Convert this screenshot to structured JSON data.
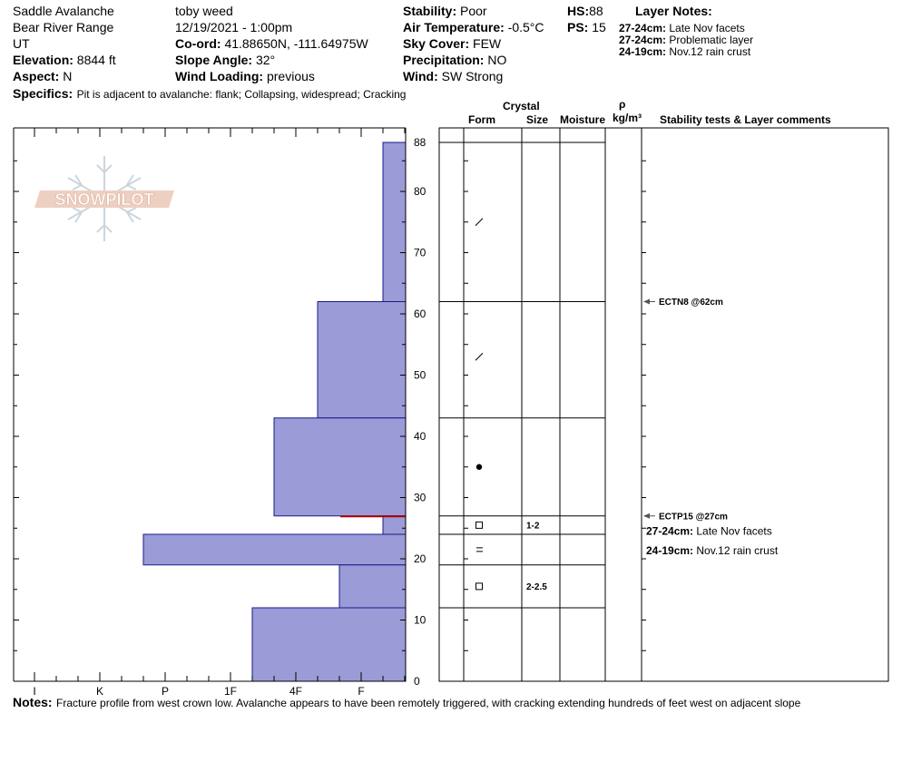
{
  "header": {
    "location": "Saddle Avalanche",
    "range": "Bear River Range",
    "state": "UT",
    "elevation_label": "Elevation:",
    "elevation": "8844 ft",
    "aspect_label": "Aspect:",
    "aspect": "N",
    "observer": "toby weed",
    "datetime": "12/19/2021 - 1:00pm",
    "coord_label": "Co-ord:",
    "coord": "41.88650N, -111.64975W",
    "slope_label": "Slope Angle:",
    "slope": "32°",
    "wind_loading_label": "Wind Loading:",
    "wind_loading": "previous",
    "stability_label": "Stability:",
    "stability": "Poor",
    "air_temp_label": "Air Temperature:",
    "air_temp": "-0.5°C",
    "sky_label": "Sky Cover:",
    "sky": "FEW",
    "precip_label": "Precipitation:",
    "precip": "NO",
    "wind_label": "Wind:",
    "wind": "SW Strong",
    "hs_label": "HS:",
    "hs": "88",
    "ps_label": "PS:",
    "ps": "15",
    "layer_notes_title": "Layer Notes:",
    "layer_notes": [
      {
        "range": "27-24cm:",
        "text": "Late Nov facets"
      },
      {
        "range": "27-24cm:",
        "text": "Problematic layer"
      },
      {
        "range": "24-19cm:",
        "text": "Nov.12 rain crust"
      }
    ],
    "specifics_label": "Specifics:",
    "specifics": "Pit is adjacent to avalanche: flank;  Collapsing, widespread;  Cracking"
  },
  "logo": {
    "text": "SNOWPILOT"
  },
  "columns": {
    "crystal": "Crystal",
    "form": "Form",
    "size": "Size",
    "moisture": "Moisture",
    "rho": "ρ",
    "density_unit": "kg/m³",
    "stability_tests": "Stability tests & Layer comments"
  },
  "notes": {
    "label": "Notes:",
    "text": "Fracture profile from west crown low. Avalanche appears to have been remotely triggered, with cracking extending hundreds of feet west on adjacent slope"
  },
  "colors": {
    "hardness_fill": "#9b9bd7",
    "hardness_stroke": "#1a1a8c",
    "marker_line": "#b00000"
  },
  "chart_data": {
    "type": "bar",
    "orientation": "horizontal",
    "y_label": "",
    "ylim": [
      0,
      88
    ],
    "y_ticks": [
      0,
      10,
      20,
      30,
      40,
      50,
      60,
      70,
      80,
      88
    ],
    "hardness_scale": [
      "I",
      "K",
      "P",
      "1F",
      "4F",
      "F"
    ],
    "layers": [
      {
        "top": 88,
        "bottom": 62,
        "hardness": "F-"
      },
      {
        "top": 62,
        "bottom": 43,
        "hardness": "4F-"
      },
      {
        "top": 43,
        "bottom": 27,
        "hardness": "4F+"
      },
      {
        "top": 27,
        "bottom": 24,
        "hardness": "F-"
      },
      {
        "top": 24,
        "bottom": 19,
        "hardness": "P+"
      },
      {
        "top": 19,
        "bottom": 12,
        "hardness": "F+"
      },
      {
        "top": 12,
        "bottom": 0,
        "hardness": "1F-"
      }
    ],
    "boundaries": [
      88,
      62,
      43,
      27,
      24,
      19,
      12
    ],
    "crystal_forms": [
      {
        "height": 75,
        "symbol": "/"
      },
      {
        "height": 53,
        "symbol": "/"
      },
      {
        "height": 35,
        "symbol": "●"
      },
      {
        "height": 25.5,
        "symbol": "□",
        "size": "1-2"
      },
      {
        "height": 21.5,
        "symbol": "="
      },
      {
        "height": 15.5,
        "symbol": "□",
        "size": "2-2.5"
      }
    ],
    "stability_tests": [
      {
        "height": 62,
        "label": "ECTN8 @62cm"
      },
      {
        "height": 27,
        "label": "ECTP15 @27cm"
      }
    ],
    "layer_comments": [
      {
        "height": 24.5,
        "range": "27-24cm:",
        "text": "Late Nov facets"
      },
      {
        "height": 21.3,
        "range": "24-19cm:",
        "text": "Nov.12 rain crust"
      }
    ]
  }
}
